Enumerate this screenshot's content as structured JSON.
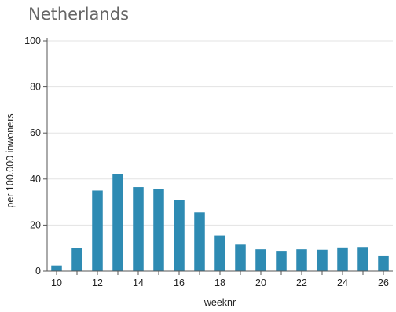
{
  "chart_data": {
    "type": "bar",
    "title": "Netherlands",
    "xlabel": "weeknr",
    "ylabel": "per 100.000 inwoners",
    "x": [
      10,
      11,
      12,
      13,
      14,
      15,
      16,
      17,
      18,
      19,
      20,
      21,
      22,
      23,
      24,
      25,
      26
    ],
    "values": [
      2.5,
      10,
      35,
      42,
      36.5,
      35.5,
      31,
      25.5,
      15.5,
      11.5,
      9.5,
      8.5,
      9.5,
      9.3,
      10.3,
      10.5,
      6.5
    ],
    "x_tick_labels": [
      "10",
      "12",
      "14",
      "16",
      "18",
      "20",
      "22",
      "24",
      "26"
    ],
    "y_ticks": [
      0,
      20,
      40,
      60,
      80,
      100
    ],
    "ylim": [
      0,
      100
    ],
    "grid": true,
    "bar_color": "#2e8bb3",
    "grid_color": "#e3e3e3",
    "axis_color": "#555555"
  }
}
